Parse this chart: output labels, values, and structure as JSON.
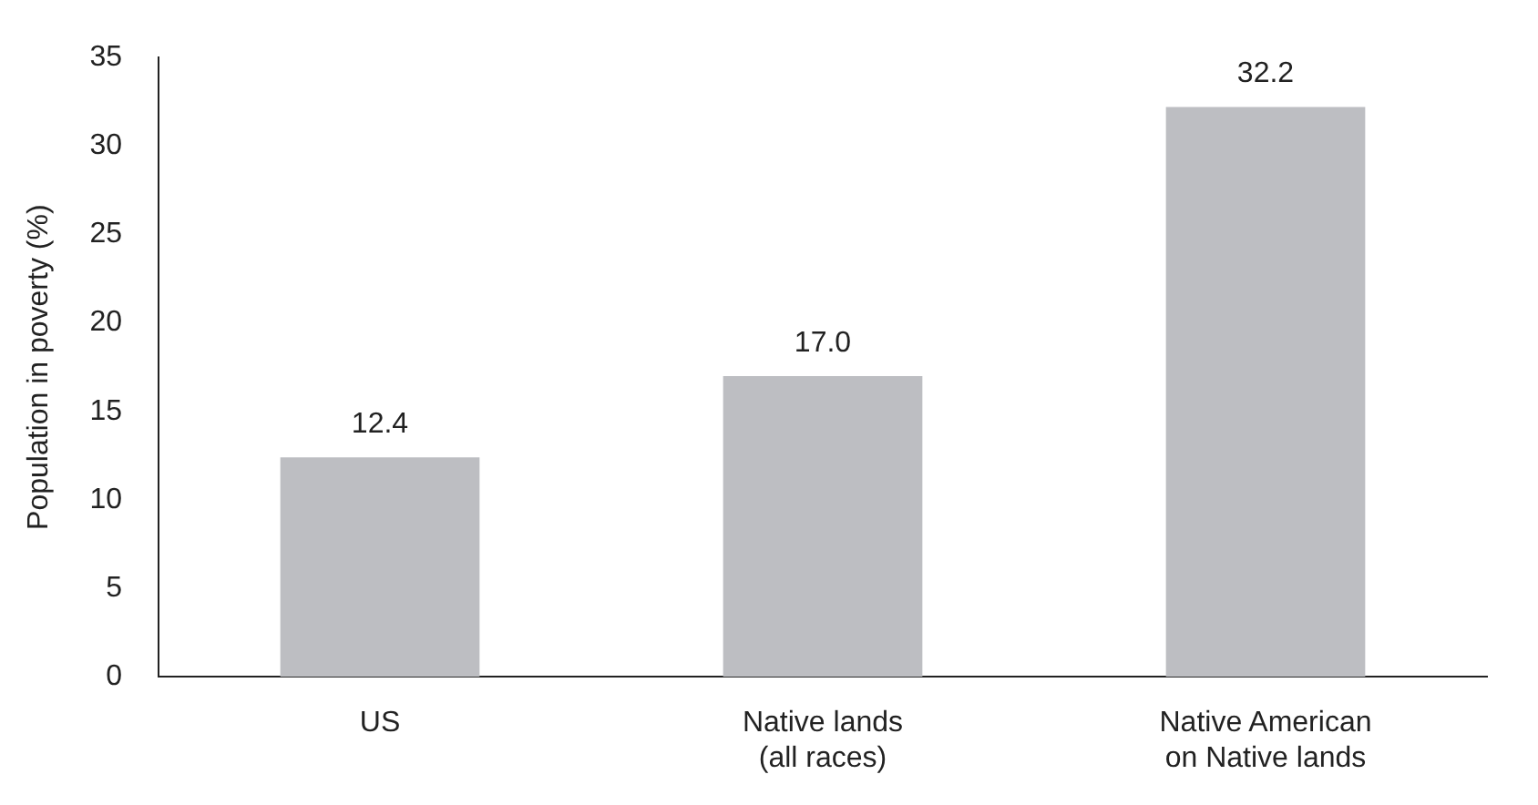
{
  "chart_data": {
    "type": "bar",
    "ylabel": "Population in poverty (%)",
    "categories": [
      "US",
      "Native lands\n(all races)",
      "Native American\non Native lands"
    ],
    "values": [
      12.4,
      17.0,
      32.2
    ],
    "value_labels": [
      "12.4",
      "17.0",
      "32.2"
    ],
    "color": "#bdbec2",
    "ylim": [
      0,
      35
    ],
    "yticks": [
      0,
      5,
      10,
      15,
      20,
      25,
      30,
      35
    ],
    "grid": false,
    "legend": false
  }
}
